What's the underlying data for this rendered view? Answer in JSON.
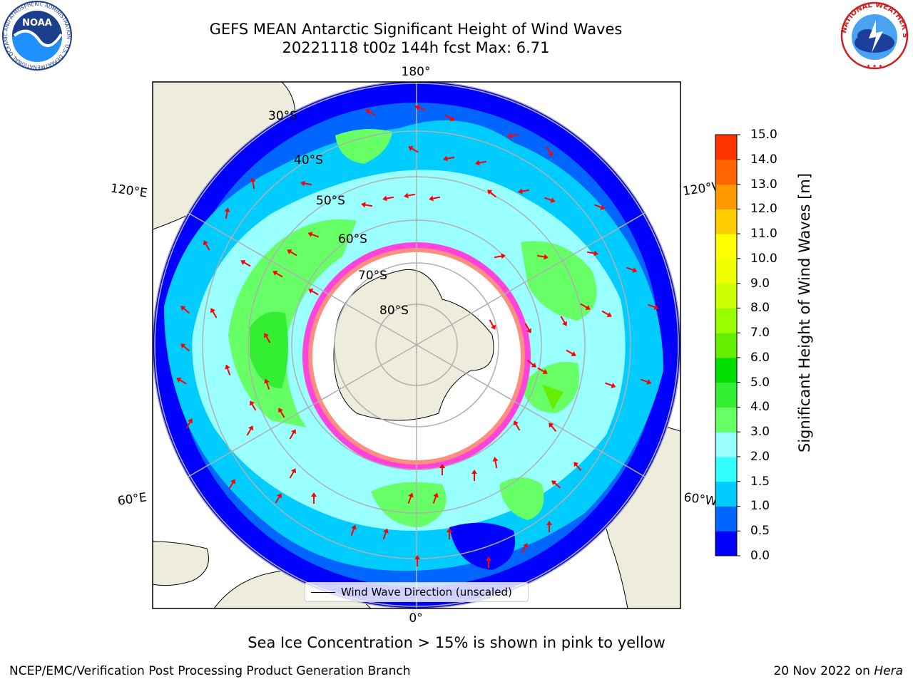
{
  "header": {
    "title_line1": "GEFS MEAN Antarctic Significant Height of Wind Waves",
    "title_line2": "20221118 t00z 144h fcst   Max: 6.71"
  },
  "logos": {
    "noaa": {
      "icon": "noaa-logo",
      "text": "NOAA",
      "ring_text": "NATIONAL OCEANIC AND ATMOSPHERIC ADMINISTRATION · U.S. DEPARTMENT OF COMMERCE"
    },
    "nws": {
      "icon": "nws-logo",
      "ring_text": "NATIONAL WEATHER SERVICE"
    }
  },
  "map": {
    "projection": "south polar stereographic",
    "longitude_labels": [
      "180°",
      "120°E",
      "120°W",
      "60°E",
      "60°W",
      "0°"
    ],
    "latitude_labels": [
      "30°S",
      "40°S",
      "50°S",
      "60°S",
      "70°S",
      "80°S"
    ],
    "legend_label": "Wind Wave Direction (unscaled)",
    "colors": {
      "land": "#eeecdc",
      "sea_ice": "#ffffff",
      "ice_edge": "#ff33dd",
      "arrows": "#ff0000",
      "grid": "#b0b0b0"
    }
  },
  "colorbar": {
    "label": "Significant Height of Wind Waves [m]",
    "ticks": [
      "0.0",
      "0.5",
      "1.0",
      "1.5",
      "2.0",
      "3.0",
      "4.0",
      "5.0",
      "6.0",
      "7.0",
      "8.0",
      "9.0",
      "10.0",
      "11.0",
      "12.0",
      "13.0",
      "14.0",
      "15.0"
    ],
    "colors": [
      "#0000ff",
      "#0066ff",
      "#00ccff",
      "#33ffff",
      "#99ffff",
      "#66ff66",
      "#33ee33",
      "#00dd00",
      "#66ee00",
      "#99ff00",
      "#ccff00",
      "#eeff00",
      "#ffff00",
      "#ffcc00",
      "#ff9900",
      "#ff6600",
      "#ff3300",
      "#ff0000"
    ]
  },
  "footer": {
    "note": "Sea Ice Concentration > 15% is shown in pink to yellow",
    "credit": "NCEP/EMC/Verification Post Processing Product Generation Branch",
    "date": "20 Nov 2022 on",
    "machine": "Hera"
  }
}
